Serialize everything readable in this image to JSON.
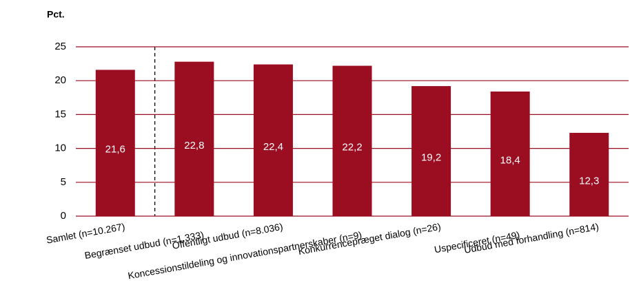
{
  "chart_data": {
    "type": "bar",
    "ylabel": "Pct.",
    "categories": [
      "Samlet (n=10.267)",
      "Begrænset udbud (n=1.333)",
      "Offentligt udbud (n=8.036)",
      "Koncessionstildeling og innovationspartnerskaber (n=9)",
      "Konkurrencepræget dialog (n=26)",
      "Uspecificeret (n=49)",
      "Udbud med forhandling (n=814)"
    ],
    "values": [
      21.6,
      22.8,
      22.4,
      22.2,
      19.2,
      18.4,
      12.3
    ],
    "value_labels": [
      "21,6",
      "22,8",
      "22,4",
      "22,2",
      "19,2",
      "18,4",
      "12,3"
    ],
    "color": "#9b0d20",
    "ylim": [
      0,
      25
    ],
    "yticks": [
      0,
      5,
      10,
      15,
      20,
      25
    ],
    "grid": true
  }
}
